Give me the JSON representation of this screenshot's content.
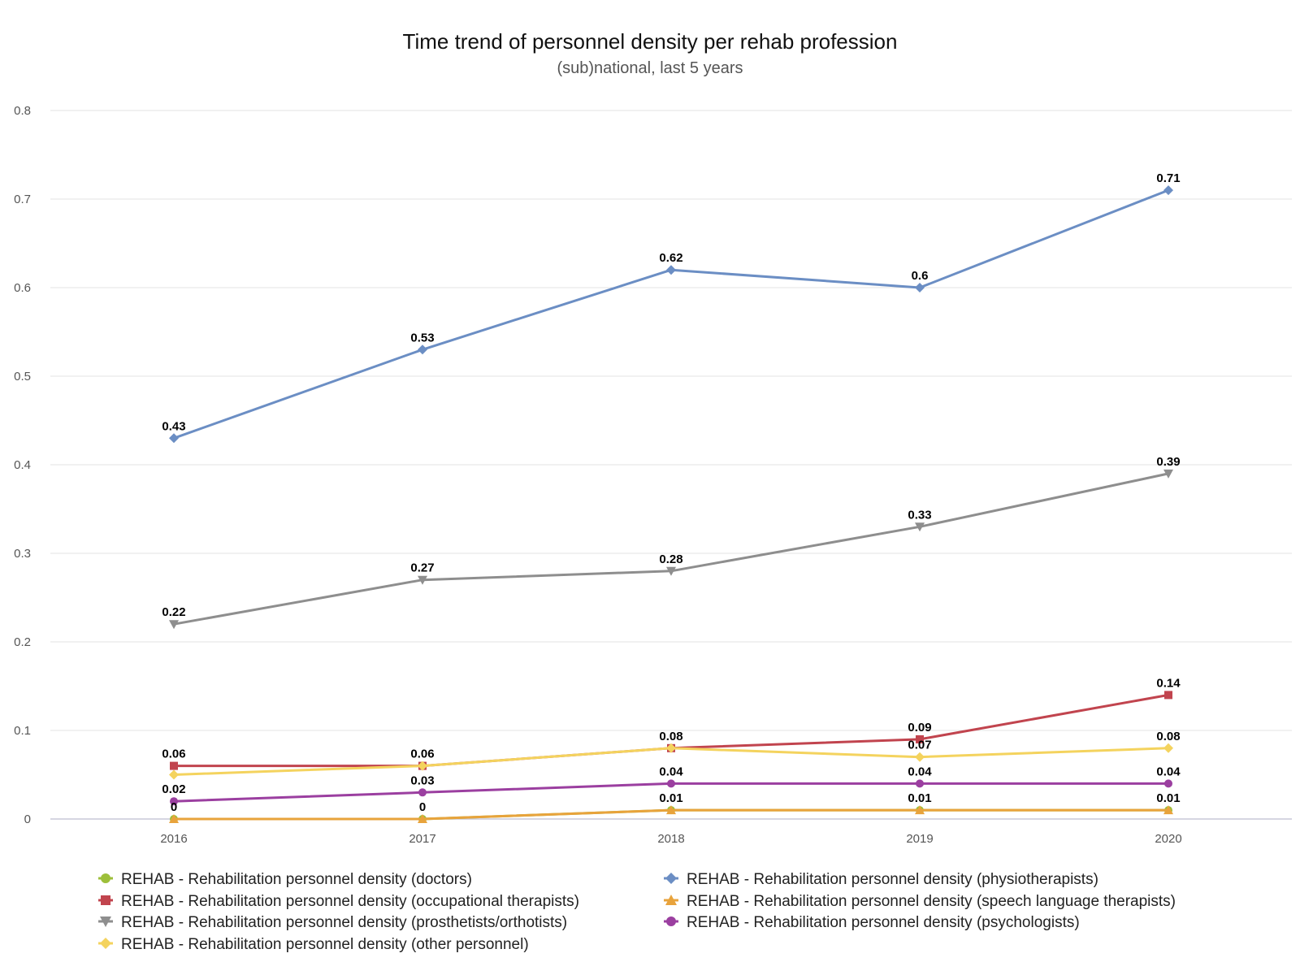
{
  "chart_data": {
    "type": "line",
    "title": "Time trend of personnel density per rehab profession",
    "subtitle": "(sub)national, last 5 years",
    "x": [
      "2016",
      "2017",
      "2018",
      "2019",
      "2020"
    ],
    "ylim": [
      0,
      0.8
    ],
    "yticks": [
      "0",
      "0.1",
      "0.2",
      "0.3",
      "0.4",
      "0.5",
      "0.6",
      "0.7",
      "0.8"
    ],
    "grid": true,
    "legend_position": "bottom",
    "series": [
      {
        "name": "REHAB - Rehabilitation personnel density (doctors)",
        "color": "#9dbf3a",
        "marker": "circle",
        "values": [
          0,
          0,
          0.01,
          0.01,
          0.01
        ],
        "labels": [
          "0",
          "0",
          "0.01",
          "0.01",
          "0.01"
        ]
      },
      {
        "name": "REHAB - Rehabilitation personnel density (physiotherapists)",
        "color": "#6b8ec4",
        "marker": "diamond",
        "values": [
          0.43,
          0.53,
          0.62,
          0.6,
          0.71
        ],
        "labels": [
          "0.43",
          "0.53",
          "0.62",
          "0.6",
          "0.71"
        ]
      },
      {
        "name": "REHAB - Rehabilitation personnel density (occupational therapists)",
        "color": "#c1444e",
        "marker": "square",
        "values": [
          0.06,
          0.06,
          0.08,
          0.09,
          0.14
        ],
        "labels": [
          "0.06",
          "0.06",
          "",
          "0.09",
          "0.14"
        ]
      },
      {
        "name": "REHAB - Rehabilitation personnel density (speech language therapists)",
        "color": "#e8a33c",
        "marker": "triangle-up",
        "values": [
          0,
          0,
          0.01,
          0.01,
          0.01
        ],
        "labels": [
          "",
          "",
          "",
          "",
          ""
        ]
      },
      {
        "name": "REHAB - Rehabilitation personnel density (prosthetists/orthotists)",
        "color": "#8e8e8e",
        "marker": "triangle-down",
        "values": [
          0.22,
          0.27,
          0.28,
          0.33,
          0.39
        ],
        "labels": [
          "0.22",
          "0.27",
          "0.28",
          "0.33",
          "0.39"
        ]
      },
      {
        "name": "REHAB - Rehabilitation personnel density (psychologists)",
        "color": "#9b3fa0",
        "marker": "circle",
        "values": [
          0.02,
          0.03,
          0.04,
          0.04,
          0.04
        ],
        "labels": [
          "0.02",
          "0.03",
          "0.04",
          "0.04",
          "0.04"
        ]
      },
      {
        "name": "REHAB - Rehabilitation personnel density (other personnel)",
        "color": "#f4d35e",
        "marker": "diamond",
        "values": [
          0.05,
          0.06,
          0.08,
          0.07,
          0.08
        ],
        "labels": [
          "",
          "",
          "0.08",
          "0.07",
          "0.08"
        ]
      }
    ]
  }
}
